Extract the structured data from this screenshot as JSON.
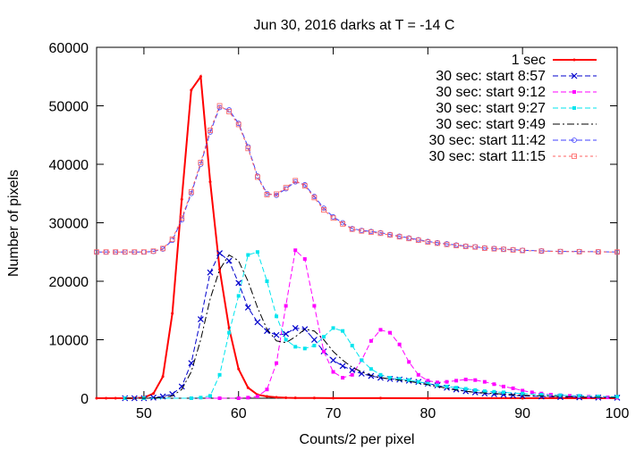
{
  "chart_data": {
    "type": "line",
    "title": "Jun 30, 2016 darks at T = -14 C",
    "xlabel": "Counts/2 per pixel",
    "ylabel": "Number of pixels",
    "xlim": [
      45,
      100
    ],
    "ylim": [
      0,
      60000
    ],
    "xticks": [
      50,
      60,
      70,
      80,
      90,
      100
    ],
    "yticks": [
      0,
      10000,
      20000,
      30000,
      40000,
      50000,
      60000
    ],
    "legend_position": "top-right",
    "grid": false,
    "series": [
      {
        "name": "1 sec",
        "color": "#ff0000",
        "dash": "solid",
        "marker": "point",
        "points": [
          [
            45,
            0
          ],
          [
            46,
            0
          ],
          [
            47,
            0
          ],
          [
            48,
            0
          ],
          [
            49,
            0
          ],
          [
            50,
            100
          ],
          [
            51,
            800
          ],
          [
            52,
            3700
          ],
          [
            53,
            14500
          ],
          [
            54,
            34000
          ],
          [
            55,
            52700
          ],
          [
            56,
            55000
          ],
          [
            57,
            37000
          ],
          [
            58,
            22000
          ],
          [
            59,
            12000
          ],
          [
            60,
            5000
          ],
          [
            61,
            1800
          ],
          [
            62,
            600
          ],
          [
            63,
            300
          ],
          [
            64,
            150
          ],
          [
            65,
            80
          ],
          [
            66,
            50
          ],
          [
            68,
            30
          ],
          [
            70,
            20
          ],
          [
            75,
            10
          ],
          [
            80,
            5
          ],
          [
            90,
            0
          ],
          [
            100,
            0
          ]
        ]
      },
      {
        "name": "30 sec: start 8:57",
        "color": "#0000cc",
        "dash": "dashed",
        "marker": "x",
        "points": [
          [
            48,
            0
          ],
          [
            49,
            0
          ],
          [
            50,
            0
          ],
          [
            51,
            100
          ],
          [
            52,
            300
          ],
          [
            53,
            700
          ],
          [
            54,
            2000
          ],
          [
            55,
            6000
          ],
          [
            56,
            13500
          ],
          [
            57,
            21500
          ],
          [
            58,
            24800
          ],
          [
            59,
            23500
          ],
          [
            60,
            19700
          ],
          [
            61,
            15500
          ],
          [
            62,
            13000
          ],
          [
            63,
            11500
          ],
          [
            64,
            10800
          ],
          [
            65,
            11000
          ],
          [
            66,
            12000
          ],
          [
            67,
            11800
          ],
          [
            68,
            10000
          ],
          [
            69,
            8000
          ],
          [
            70,
            6500
          ],
          [
            71,
            5500
          ],
          [
            72,
            4800
          ],
          [
            73,
            4200
          ],
          [
            74,
            3800
          ],
          [
            75,
            3500
          ],
          [
            76,
            3300
          ],
          [
            77,
            3200
          ],
          [
            78,
            3000
          ],
          [
            79,
            2800
          ],
          [
            80,
            2500
          ],
          [
            81,
            2200
          ],
          [
            82,
            1800
          ],
          [
            83,
            1500
          ],
          [
            84,
            1200
          ],
          [
            85,
            1000
          ],
          [
            86,
            800
          ],
          [
            87,
            700
          ],
          [
            88,
            600
          ],
          [
            89,
            500
          ],
          [
            90,
            400
          ],
          [
            92,
            300
          ],
          [
            94,
            200
          ],
          [
            96,
            150
          ],
          [
            98,
            100
          ],
          [
            100,
            80
          ]
        ]
      },
      {
        "name": "30 sec: start 9:12",
        "color": "#ff00ff",
        "dash": "dashed",
        "marker": "square",
        "points": [
          [
            48,
            0
          ],
          [
            50,
            0
          ],
          [
            55,
            0
          ],
          [
            58,
            0
          ],
          [
            60,
            0
          ],
          [
            61,
            100
          ],
          [
            62,
            300
          ],
          [
            63,
            1500
          ],
          [
            64,
            6000
          ],
          [
            65,
            15800
          ],
          [
            66,
            25300
          ],
          [
            67,
            23800
          ],
          [
            68,
            15800
          ],
          [
            69,
            8000
          ],
          [
            70,
            4500
          ],
          [
            71,
            3500
          ],
          [
            72,
            4000
          ],
          [
            73,
            6500
          ],
          [
            74,
            9800
          ],
          [
            75,
            11700
          ],
          [
            76,
            11200
          ],
          [
            77,
            9200
          ],
          [
            78,
            6200
          ],
          [
            79,
            4000
          ],
          [
            80,
            3000
          ],
          [
            81,
            2700
          ],
          [
            82,
            2800
          ],
          [
            83,
            3000
          ],
          [
            84,
            3200
          ],
          [
            85,
            3100
          ],
          [
            86,
            2800
          ],
          [
            87,
            2400
          ],
          [
            88,
            2000
          ],
          [
            89,
            1700
          ],
          [
            90,
            1300
          ],
          [
            91,
            1000
          ],
          [
            92,
            800
          ],
          [
            93,
            600
          ],
          [
            94,
            500
          ],
          [
            95,
            400
          ],
          [
            96,
            300
          ],
          [
            97,
            250
          ],
          [
            98,
            200
          ],
          [
            99,
            150
          ],
          [
            100,
            120
          ]
        ]
      },
      {
        "name": "30 sec: start 9:27",
        "color": "#00e5ee",
        "dash": "dashed",
        "marker": "square",
        "points": [
          [
            48,
            0
          ],
          [
            50,
            0
          ],
          [
            55,
            0
          ],
          [
            56,
            100
          ],
          [
            57,
            400
          ],
          [
            58,
            4000
          ],
          [
            59,
            11200
          ],
          [
            60,
            17500
          ],
          [
            61,
            24500
          ],
          [
            62,
            25000
          ],
          [
            63,
            20000
          ],
          [
            64,
            14000
          ],
          [
            65,
            10000
          ],
          [
            66,
            8800
          ],
          [
            67,
            8500
          ],
          [
            68,
            9000
          ],
          [
            69,
            10500
          ],
          [
            70,
            12000
          ],
          [
            71,
            11500
          ],
          [
            72,
            9000
          ],
          [
            73,
            6500
          ],
          [
            74,
            5000
          ],
          [
            75,
            4000
          ],
          [
            76,
            3500
          ],
          [
            77,
            3300
          ],
          [
            78,
            3100
          ],
          [
            79,
            2800
          ],
          [
            80,
            2500
          ],
          [
            81,
            2200
          ],
          [
            82,
            2000
          ],
          [
            83,
            1800
          ],
          [
            84,
            1600
          ],
          [
            85,
            1400
          ],
          [
            86,
            1200
          ],
          [
            87,
            1100
          ],
          [
            88,
            1000
          ],
          [
            90,
            800
          ],
          [
            92,
            600
          ],
          [
            94,
            500
          ],
          [
            96,
            400
          ],
          [
            98,
            300
          ],
          [
            100,
            250
          ]
        ]
      },
      {
        "name": "30 sec: start 9:49",
        "color": "#000000",
        "dash": "dashdot",
        "marker": "none",
        "points": [
          [
            48,
            0
          ],
          [
            50,
            0
          ],
          [
            52,
            100
          ],
          [
            53,
            400
          ],
          [
            54,
            1500
          ],
          [
            55,
            4500
          ],
          [
            56,
            10000
          ],
          [
            57,
            17000
          ],
          [
            58,
            22000
          ],
          [
            59,
            24500
          ],
          [
            60,
            23500
          ],
          [
            61,
            20000
          ],
          [
            62,
            15500
          ],
          [
            63,
            11800
          ],
          [
            64,
            9800
          ],
          [
            65,
            9500
          ],
          [
            66,
            10500
          ],
          [
            67,
            11800
          ],
          [
            68,
            11500
          ],
          [
            69,
            10000
          ],
          [
            70,
            8000
          ],
          [
            71,
            6500
          ],
          [
            72,
            5300
          ],
          [
            73,
            4500
          ],
          [
            74,
            3900
          ],
          [
            75,
            3500
          ],
          [
            76,
            3300
          ],
          [
            77,
            3100
          ],
          [
            78,
            2900
          ],
          [
            79,
            2600
          ],
          [
            80,
            2300
          ],
          [
            81,
            2000
          ],
          [
            82,
            1700
          ],
          [
            83,
            1400
          ],
          [
            84,
            1200
          ],
          [
            85,
            1000
          ],
          [
            86,
            900
          ],
          [
            88,
            700
          ],
          [
            90,
            500
          ],
          [
            92,
            400
          ],
          [
            94,
            300
          ],
          [
            96,
            200
          ],
          [
            98,
            150
          ],
          [
            100,
            100
          ]
        ]
      },
      {
        "name": "30 sec: start 11:42",
        "color": "#4040ff",
        "dash": "dashed",
        "marker": "circle",
        "points": [
          [
            45,
            25000
          ],
          [
            46,
            25000
          ],
          [
            47,
            25000
          ],
          [
            48,
            25000
          ],
          [
            49,
            25000
          ],
          [
            50,
            25000
          ],
          [
            51,
            25100
          ],
          [
            52,
            25500
          ],
          [
            53,
            27000
          ],
          [
            54,
            30500
          ],
          [
            55,
            35000
          ],
          [
            56,
            40000
          ],
          [
            57,
            45500
          ],
          [
            58,
            49700
          ],
          [
            59,
            49300
          ],
          [
            60,
            47000
          ],
          [
            61,
            43000
          ],
          [
            62,
            38000
          ],
          [
            63,
            35000
          ],
          [
            64,
            34700
          ],
          [
            65,
            35800
          ],
          [
            66,
            37000
          ],
          [
            67,
            36500
          ],
          [
            68,
            34500
          ],
          [
            69,
            32500
          ],
          [
            70,
            31000
          ],
          [
            71,
            30000
          ],
          [
            72,
            29000
          ],
          [
            73,
            28700
          ],
          [
            74,
            28500
          ],
          [
            75,
            28300
          ],
          [
            76,
            28000
          ],
          [
            77,
            27700
          ],
          [
            78,
            27400
          ],
          [
            79,
            27100
          ],
          [
            80,
            26800
          ],
          [
            81,
            26600
          ],
          [
            82,
            26400
          ],
          [
            83,
            26200
          ],
          [
            84,
            26000
          ],
          [
            85,
            25900
          ],
          [
            86,
            25700
          ],
          [
            87,
            25600
          ],
          [
            88,
            25500
          ],
          [
            89,
            25400
          ],
          [
            90,
            25300
          ],
          [
            92,
            25200
          ],
          [
            94,
            25100
          ],
          [
            96,
            25100
          ],
          [
            98,
            25050
          ],
          [
            100,
            25000
          ]
        ]
      },
      {
        "name": "30 sec: start 11:15",
        "color": "#ff6060",
        "dash": "dotted",
        "marker": "square-open",
        "points": [
          [
            45,
            25000
          ],
          [
            46,
            25000
          ],
          [
            47,
            25000
          ],
          [
            48,
            25000
          ],
          [
            49,
            25000
          ],
          [
            50,
            25000
          ],
          [
            51,
            25150
          ],
          [
            52,
            25600
          ],
          [
            53,
            27200
          ],
          [
            54,
            30800
          ],
          [
            55,
            35300
          ],
          [
            56,
            40300
          ],
          [
            57,
            45800
          ],
          [
            58,
            50000
          ],
          [
            59,
            49000
          ],
          [
            60,
            46800
          ],
          [
            61,
            42700
          ],
          [
            62,
            37800
          ],
          [
            63,
            34800
          ],
          [
            64,
            34900
          ],
          [
            65,
            36000
          ],
          [
            66,
            37200
          ],
          [
            67,
            36300
          ],
          [
            68,
            34300
          ],
          [
            69,
            32200
          ],
          [
            70,
            30800
          ],
          [
            71,
            29800
          ],
          [
            72,
            28900
          ],
          [
            73,
            28600
          ],
          [
            74,
            28400
          ],
          [
            75,
            28200
          ],
          [
            76,
            27900
          ],
          [
            77,
            27600
          ],
          [
            78,
            27300
          ],
          [
            79,
            27000
          ],
          [
            80,
            26700
          ],
          [
            81,
            26500
          ],
          [
            82,
            26300
          ],
          [
            83,
            26100
          ],
          [
            84,
            25950
          ],
          [
            85,
            25850
          ],
          [
            86,
            25650
          ],
          [
            87,
            25550
          ],
          [
            88,
            25450
          ],
          [
            89,
            25350
          ],
          [
            90,
            25250
          ],
          [
            92,
            25150
          ],
          [
            94,
            25080
          ],
          [
            96,
            25050
          ],
          [
            98,
            25020
          ],
          [
            100,
            25000
          ]
        ]
      }
    ]
  }
}
